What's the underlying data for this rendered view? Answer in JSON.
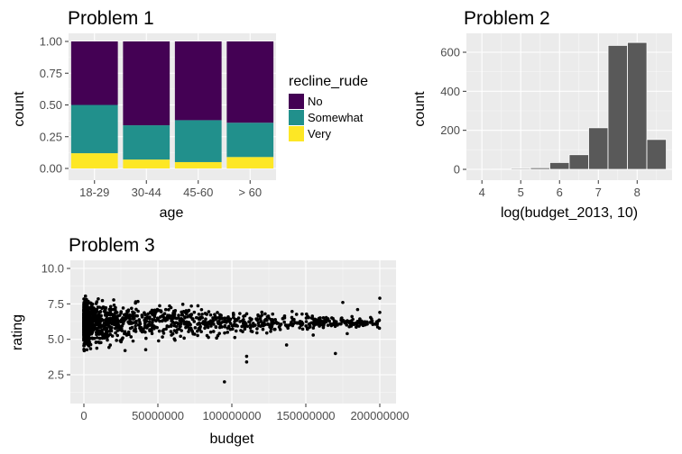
{
  "colors": {
    "panel": "#ebebeb",
    "no": "#440154",
    "somewhat": "#21908c",
    "very": "#fde725",
    "histogram_bar": "#595959",
    "point": "#000000"
  },
  "chart_data": [
    {
      "type": "bar",
      "title": "Problem 1",
      "xlabel": "age",
      "ylabel": "count",
      "categories": [
        "18-29",
        "30-44",
        "45-60",
        "> 60"
      ],
      "ylim": [
        0,
        1
      ],
      "yticks": [
        "0.00",
        "0.25",
        "0.50",
        "0.75",
        "1.00"
      ],
      "stacked": true,
      "legend": {
        "title": "recline_rude",
        "position": "right"
      },
      "series": [
        {
          "name": "Very",
          "color": "#fde725",
          "values": [
            0.12,
            0.07,
            0.05,
            0.09
          ]
        },
        {
          "name": "Somewhat",
          "color": "#21908c",
          "values": [
            0.38,
            0.27,
            0.33,
            0.27
          ]
        },
        {
          "name": "No",
          "color": "#440154",
          "values": [
            0.5,
            0.66,
            0.62,
            0.64
          ]
        }
      ],
      "grid": true
    },
    {
      "type": "bar",
      "subtype": "histogram",
      "title": "Problem 2",
      "xlabel": "log(budget_2013, 10)",
      "ylabel": "count",
      "xlim": [
        3.6,
        8.9
      ],
      "xticks": [
        "4",
        "5",
        "6",
        "7",
        "8"
      ],
      "ylim": [
        0,
        690
      ],
      "yticks": [
        "0",
        "200",
        "400",
        "600"
      ],
      "bins": [
        {
          "x": 4.0,
          "count": 0
        },
        {
          "x": 4.5,
          "count": 1
        },
        {
          "x": 5.0,
          "count": 5
        },
        {
          "x": 5.5,
          "count": 8
        },
        {
          "x": 6.0,
          "count": 35
        },
        {
          "x": 6.5,
          "count": 75
        },
        {
          "x": 7.0,
          "count": 213
        },
        {
          "x": 7.5,
          "count": 635
        },
        {
          "x": 8.0,
          "count": 650
        },
        {
          "x": 8.5,
          "count": 153
        }
      ],
      "bin_width": 0.5,
      "grid": true
    },
    {
      "type": "scatter",
      "title": "Problem 3",
      "xlabel": "budget",
      "ylabel": "rating",
      "xticks": [
        "0",
        "50000000",
        "100000000",
        "150000000",
        "200000000"
      ],
      "yticks": [
        "2.5",
        "5.0",
        "7.5",
        "10.0"
      ],
      "xlim": [
        -5000000,
        210000000
      ],
      "ylim": [
        0.8,
        10.2
      ],
      "grid": true
    }
  ]
}
